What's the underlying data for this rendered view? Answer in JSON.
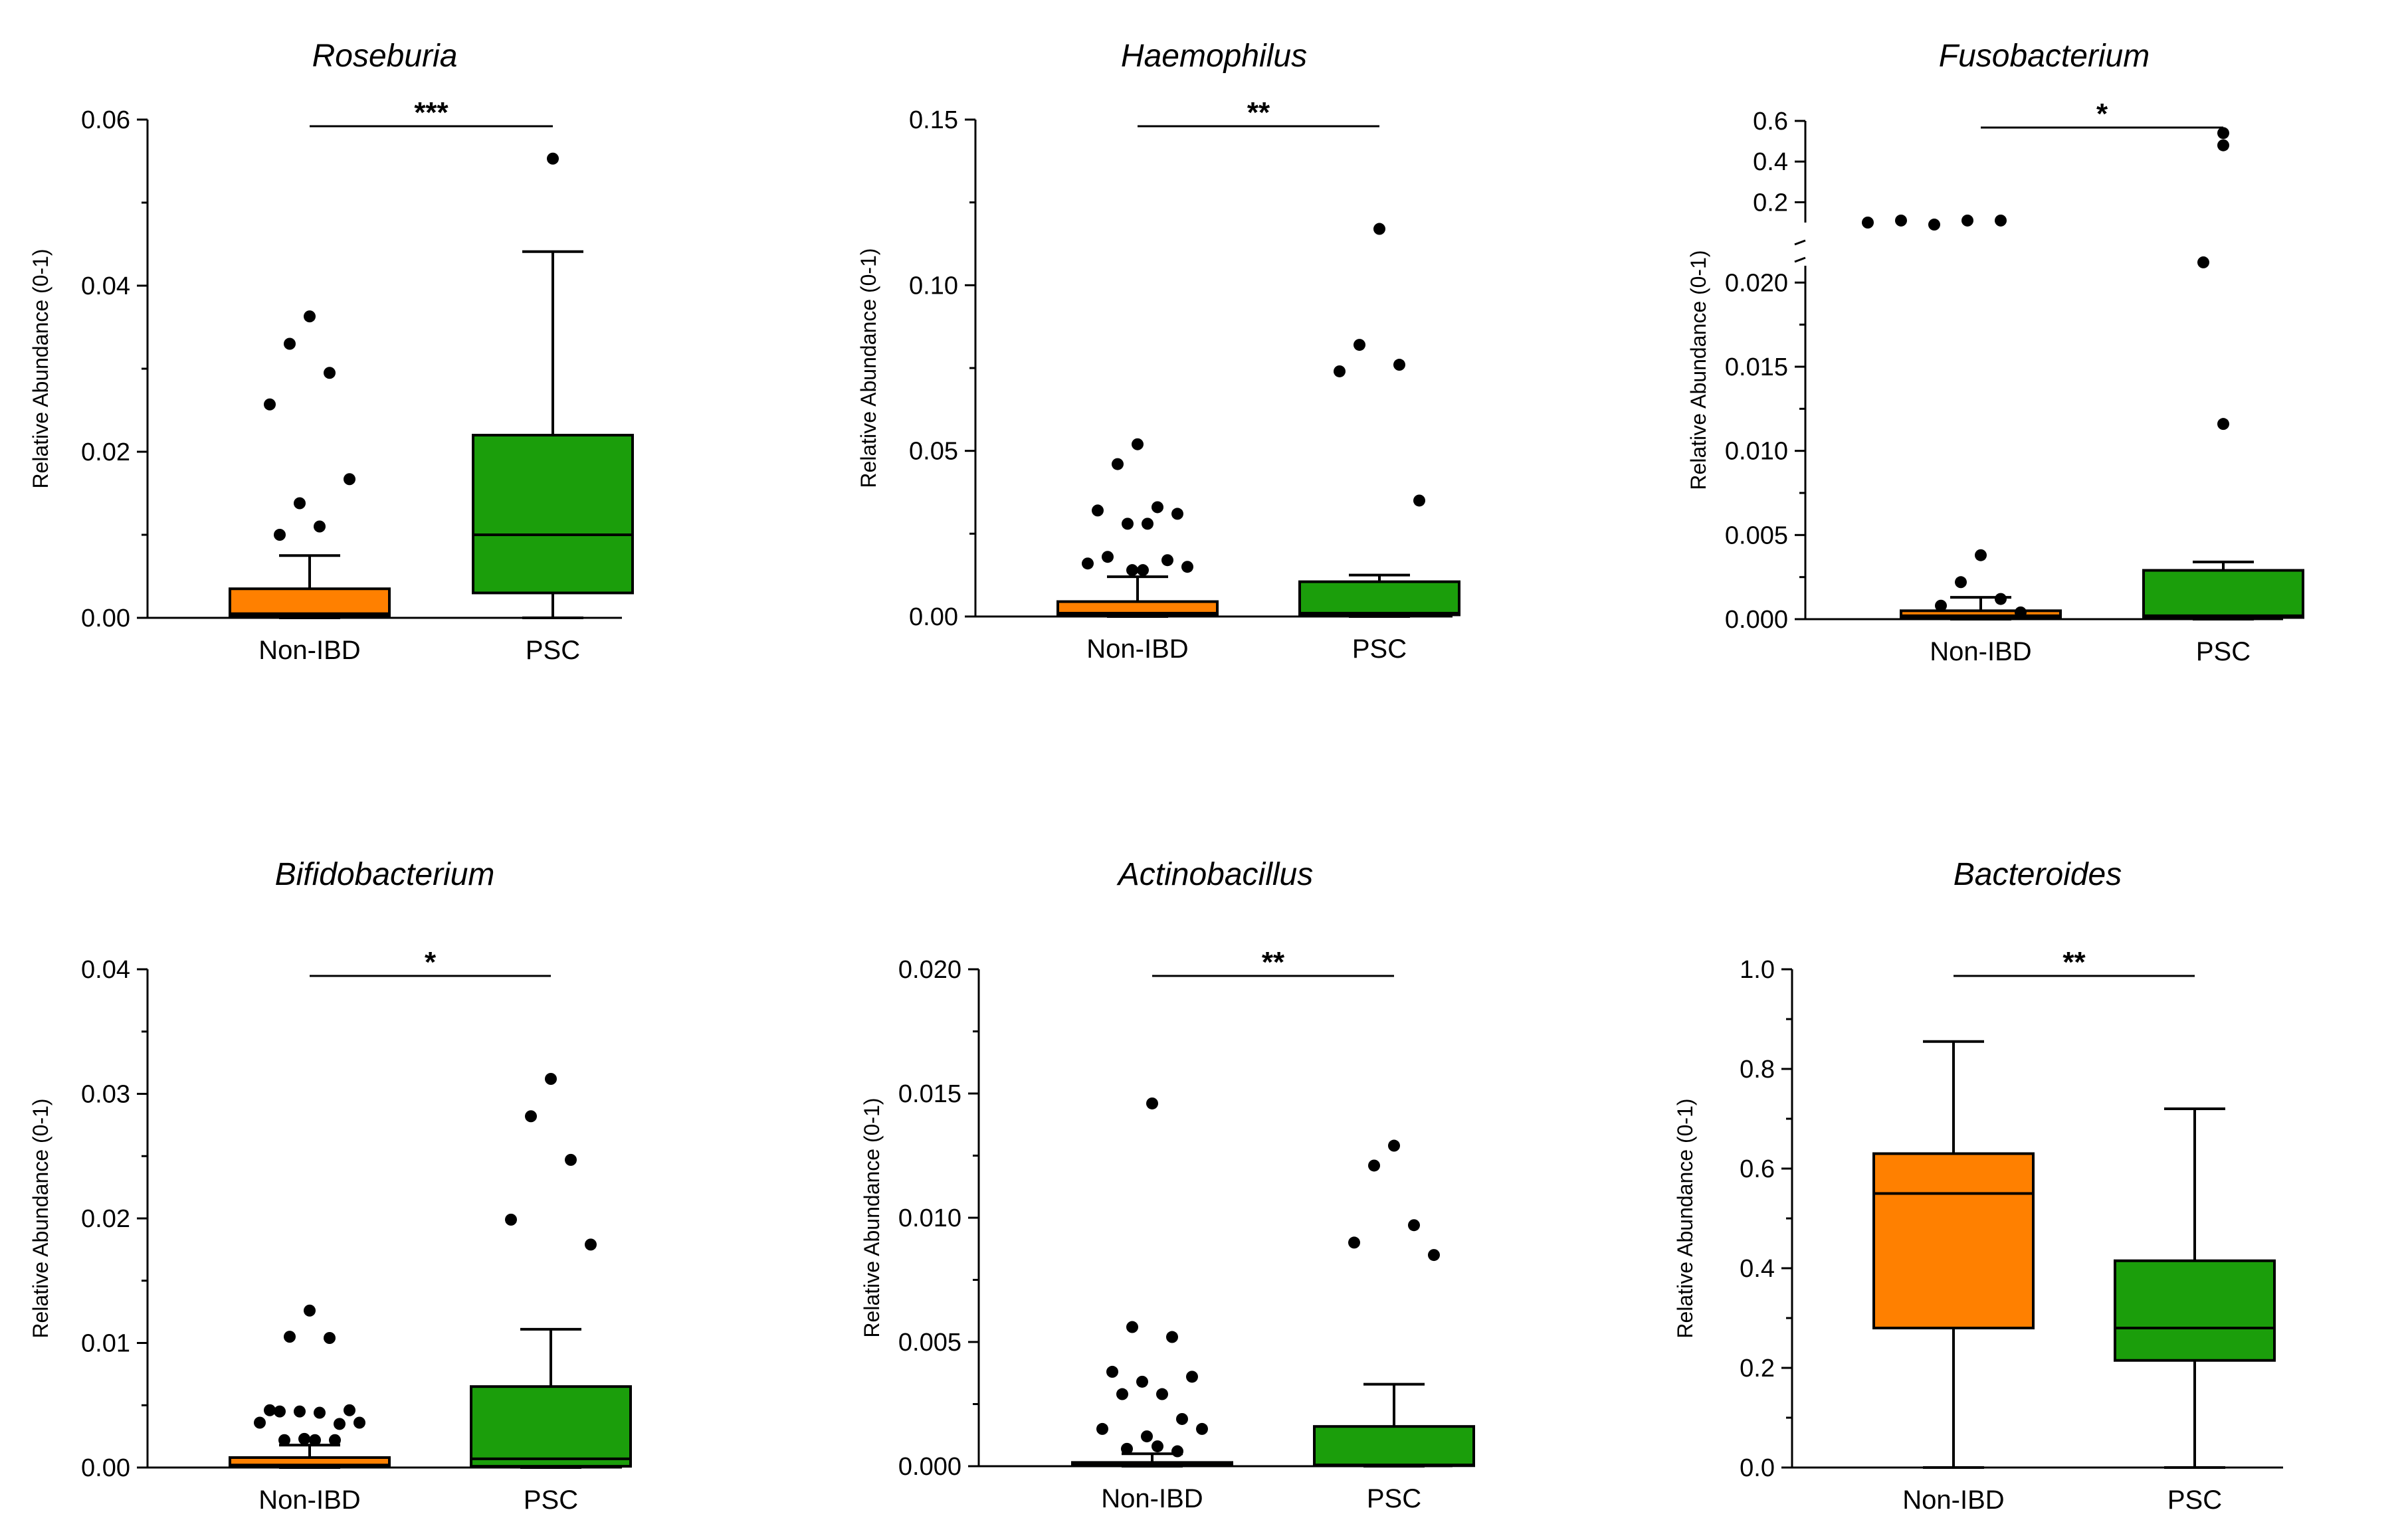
{
  "colors": {
    "non_ibd": "#ff8000",
    "psc": "#1b9e0b",
    "ink": "#000000"
  },
  "chart_data": [
    {
      "type": "box",
      "title": "Roseburia",
      "ylabel": "Relative Abundance (0-1)",
      "categories": [
        "Non-IBD",
        "PSC"
      ],
      "ylim": [
        0,
        0.06
      ],
      "yticks": [
        "0.00",
        "0.02",
        "0.04",
        "0.06"
      ],
      "ytick_values": [
        0,
        0.02,
        0.04,
        0.06
      ],
      "significance": "***",
      "boxes": [
        {
          "q1": 0.0002,
          "median": 0.0005,
          "q3": 0.0035,
          "whisker_low": 0.0,
          "whisker_high": 0.0075,
          "outliers": [
            0.0363,
            0.033,
            0.0295,
            0.0257,
            0.0167,
            0.0138,
            0.011,
            0.01
          ]
        },
        {
          "q1": 0.003,
          "median": 0.01,
          "q3": 0.022,
          "whisker_low": 0.0,
          "whisker_high": 0.0441,
          "outliers": [
            0.0553
          ]
        }
      ]
    },
    {
      "type": "box",
      "title": "Haemophilus",
      "ylabel": "Relative Abundance (0-1)",
      "categories": [
        "Non-IBD",
        "PSC"
      ],
      "ylim": [
        0,
        0.15
      ],
      "yticks": [
        "0.00",
        "0.05",
        "0.10",
        "0.15"
      ],
      "ytick_values": [
        0,
        0.05,
        0.1,
        0.15
      ],
      "significance": "**",
      "boxes": [
        {
          "q1": 0.0005,
          "median": 0.001,
          "q3": 0.0045,
          "whisker_low": 0.0,
          "whisker_high": 0.012,
          "outliers": [
            0.052,
            0.046,
            0.033,
            0.032,
            0.031,
            0.028,
            0.028,
            0.018,
            0.017,
            0.016,
            0.015,
            0.014,
            0.014
          ]
        },
        {
          "q1": 0.0005,
          "median": 0.001,
          "q3": 0.0105,
          "whisker_low": 0.0,
          "whisker_high": 0.0125,
          "outliers": [
            0.117,
            0.082,
            0.076,
            0.074,
            0.035
          ]
        }
      ]
    },
    {
      "type": "box",
      "title": "Fusobacterium",
      "ylabel": "Relative Abundance (0-1)",
      "categories": [
        "Non-IBD",
        "PSC"
      ],
      "ylim": [
        0,
        0.021
      ],
      "yticks": [
        "0.000",
        "0.005",
        "0.010",
        "0.015",
        "0.020"
      ],
      "ytick_values": [
        0,
        0.005,
        0.01,
        0.015,
        0.02
      ],
      "upper_segment": {
        "ylim": [
          0.1,
          0.6
        ],
        "yticks": [
          "0.2",
          "0.4",
          "0.6"
        ],
        "ytick_values": [
          0.2,
          0.4,
          0.6
        ]
      },
      "significance": "*",
      "boxes": [
        {
          "q1": 0.0001,
          "median": 0.0002,
          "q3": 0.0005,
          "whisker_low": 0.0,
          "whisker_high": 0.0013,
          "outliers": [
            0.0038,
            0.0022,
            0.0012,
            0.0008,
            0.0004
          ],
          "outliers_upper": [
            0.1,
            0.11,
            0.09,
            0.11,
            0.11
          ]
        },
        {
          "q1": 0.0001,
          "median": 0.0002,
          "q3": 0.0029,
          "whisker_low": 0.0,
          "whisker_high": 0.0034,
          "outliers": [
            0.0116,
            0.0212
          ],
          "outliers_upper": [
            0.54,
            0.48
          ]
        }
      ]
    },
    {
      "type": "box",
      "title": "Bifidobacterium",
      "ylabel": "Relative Abundance (0-1)",
      "categories": [
        "Non-IBD",
        "PSC"
      ],
      "ylim": [
        0,
        0.04
      ],
      "yticks": [
        "0.00",
        "0.01",
        "0.02",
        "0.03",
        "0.04"
      ],
      "ytick_values": [
        0,
        0.01,
        0.02,
        0.03,
        0.04
      ],
      "significance": "*",
      "boxes": [
        {
          "q1": 0.0001,
          "median": 0.0002,
          "q3": 0.0008,
          "whisker_low": 0.0,
          "whisker_high": 0.0018,
          "outliers": [
            0.0126,
            0.0105,
            0.0104,
            0.0046,
            0.0046,
            0.0045,
            0.0044,
            0.0045,
            0.0035,
            0.0036,
            0.0036,
            0.0023,
            0.0022,
            0.0022,
            0.0022
          ]
        },
        {
          "q1": 0.0001,
          "median": 0.0007,
          "q3": 0.0065,
          "whisker_low": 0.0,
          "whisker_high": 0.0111,
          "outliers": [
            0.0312,
            0.0282,
            0.0247,
            0.0199,
            0.0179
          ]
        }
      ]
    },
    {
      "type": "box",
      "title": "Actinobacillus",
      "ylabel": "Relative Abundance (0-1)",
      "categories": [
        "Non-IBD",
        "PSC"
      ],
      "ylim": [
        0,
        0.02
      ],
      "yticks": [
        "0.000",
        "0.005",
        "0.010",
        "0.015",
        "0.020"
      ],
      "ytick_values": [
        0,
        0.005,
        0.01,
        0.015,
        0.02
      ],
      "significance": "**",
      "boxes": [
        {
          "q1": 2e-05,
          "median": 5e-05,
          "q3": 0.00015,
          "whisker_low": 0.0,
          "whisker_high": 0.0005,
          "outliers": [
            0.0146,
            0.0056,
            0.0052,
            0.0038,
            0.0036,
            0.0034,
            0.0029,
            0.0029,
            0.0019,
            0.0015,
            0.0015,
            0.0012,
            0.0008,
            0.0007,
            0.0006
          ]
        },
        {
          "q1": 2e-05,
          "median": 5e-05,
          "q3": 0.0016,
          "whisker_low": 0.0,
          "whisker_high": 0.0033,
          "outliers": [
            0.0129,
            0.0121,
            0.0097,
            0.009,
            0.0085
          ]
        }
      ]
    },
    {
      "type": "box",
      "title": "Bacteroides",
      "ylabel": "Relative Abundance (0-1)",
      "categories": [
        "Non-IBD",
        "PSC"
      ],
      "ylim": [
        0,
        1.0
      ],
      "yticks": [
        "0.0",
        "0.2",
        "0.4",
        "0.6",
        "0.8",
        "1.0"
      ],
      "ytick_values": [
        0,
        0.2,
        0.4,
        0.6,
        0.8,
        1.0
      ],
      "significance": "**",
      "boxes": [
        {
          "q1": 0.28,
          "median": 0.55,
          "q3": 0.63,
          "whisker_low": 0.0,
          "whisker_high": 0.855,
          "outliers": []
        },
        {
          "q1": 0.215,
          "median": 0.28,
          "q3": 0.415,
          "whisker_low": 0.0,
          "whisker_high": 0.72,
          "outliers": []
        }
      ]
    }
  ]
}
